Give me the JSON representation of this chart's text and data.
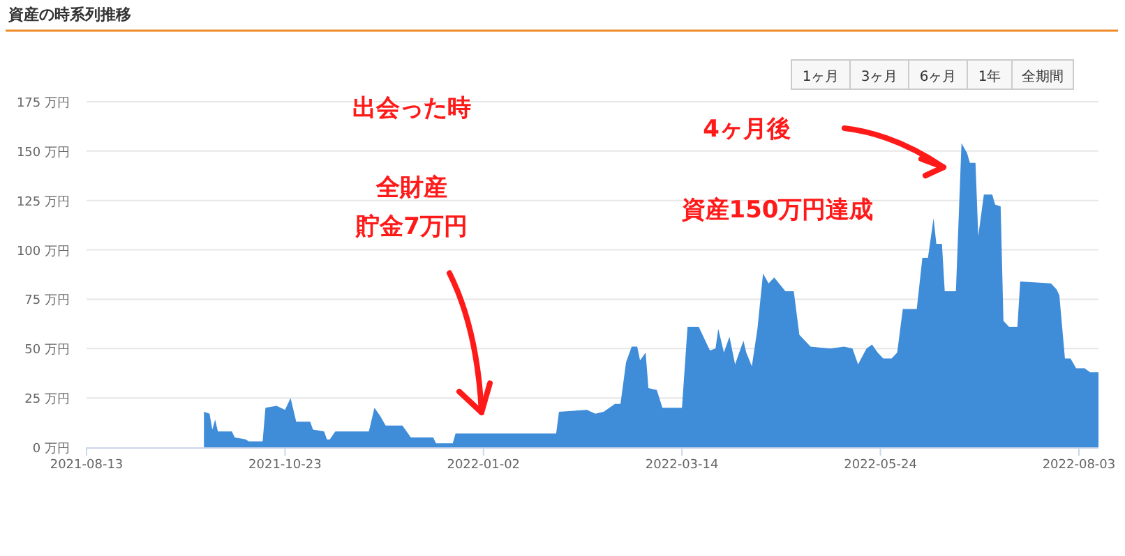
{
  "chart_data": {
    "type": "area",
    "title": "資産の時系列推移",
    "x": [
      "2021-09-24",
      "2021-09-26",
      "2021-09-27",
      "2021-09-28",
      "2021-09-29",
      "2021-10-04",
      "2021-10-05",
      "2021-10-09",
      "2021-10-10",
      "2021-10-15",
      "2021-10-16",
      "2021-10-20",
      "2021-10-23",
      "2021-10-25",
      "2021-10-26",
      "2021-10-27",
      "2021-11-01",
      "2021-11-02",
      "2021-11-06",
      "2021-11-07",
      "2021-11-08",
      "2021-11-10",
      "2021-11-22",
      "2021-11-24",
      "2021-11-26",
      "2021-11-28",
      "2021-12-04",
      "2021-12-07",
      "2021-12-15",
      "2021-12-16",
      "2021-12-22",
      "2021-12-23",
      "2022-01-28",
      "2022-01-29",
      "2022-02-08",
      "2022-02-11",
      "2022-02-14",
      "2022-02-18",
      "2022-02-20",
      "2022-02-22",
      "2022-02-24",
      "2022-02-26",
      "2022-02-27",
      "2022-03-01",
      "2022-03-02",
      "2022-03-05",
      "2022-03-07",
      "2022-03-14",
      "2022-03-16",
      "2022-03-20",
      "2022-03-22",
      "2022-03-24",
      "2022-03-26",
      "2022-03-27",
      "2022-03-29",
      "2022-03-31",
      "2022-04-02",
      "2022-04-05",
      "2022-04-06",
      "2022-04-08",
      "2022-04-10",
      "2022-04-12",
      "2022-04-14",
      "2022-04-16",
      "2022-04-20",
      "2022-04-23",
      "2022-04-25",
      "2022-04-29",
      "2022-05-06",
      "2022-05-11",
      "2022-05-14",
      "2022-05-16",
      "2022-05-19",
      "2022-05-21",
      "2022-05-23",
      "2022-05-25",
      "2022-05-28",
      "2022-05-30",
      "2022-06-01",
      "2022-06-06",
      "2022-06-08",
      "2022-06-10",
      "2022-06-12",
      "2022-06-13",
      "2022-06-15",
      "2022-06-16",
      "2022-06-20",
      "2022-06-22",
      "2022-06-24",
      "2022-06-25",
      "2022-06-27",
      "2022-06-28",
      "2022-06-30",
      "2022-07-03",
      "2022-07-04",
      "2022-07-06",
      "2022-07-07",
      "2022-07-09",
      "2022-07-12",
      "2022-07-13",
      "2022-07-24",
      "2022-07-26",
      "2022-07-27",
      "2022-07-29",
      "2022-07-31",
      "2022-08-02",
      "2022-08-05",
      "2022-08-07",
      "2022-08-10"
    ],
    "series": [
      {
        "color": "#3f8cd9",
        "values": [
          18,
          17,
          9,
          14,
          8,
          8,
          5,
          4,
          3,
          3,
          20,
          21,
          19,
          25,
          19,
          13,
          13,
          9,
          8,
          4,
          4,
          8,
          8,
          20,
          16,
          11,
          11,
          5,
          5,
          2,
          2,
          7,
          7,
          18,
          19,
          17,
          18,
          22,
          22,
          43,
          51,
          51,
          44,
          48,
          30,
          29,
          20,
          20,
          61,
          61,
          55,
          49,
          50,
          60,
          48,
          56,
          42,
          54,
          48,
          41,
          60,
          88,
          83,
          86,
          79,
          79,
          57,
          51,
          50,
          51,
          50,
          42,
          50,
          52,
          48,
          45,
          45,
          48,
          70,
          70,
          96,
          96,
          116,
          103,
          103,
          79,
          79,
          154,
          149,
          144,
          144,
          107,
          128,
          128,
          123,
          122,
          64,
          61,
          61,
          84,
          83,
          80,
          77,
          45,
          45,
          40,
          40,
          38,
          38
        ]
      }
    ],
    "xlim": [
      "2021-08-13",
      "2022-08-10"
    ],
    "xticks": [
      "2021-08-13",
      "2021-10-23",
      "2022-01-02",
      "2022-03-14",
      "2022-05-24",
      "2022-08-03"
    ],
    "ylim": [
      0,
      175
    ],
    "yticks": [
      {
        "value": 0,
        "label": "0 万円"
      },
      {
        "value": 25,
        "label": "25 万円"
      },
      {
        "value": 50,
        "label": "50 万円"
      },
      {
        "value": 75,
        "label": "75 万円"
      },
      {
        "value": 100,
        "label": "100 万円"
      },
      {
        "value": 125,
        "label": "125 万円"
      },
      {
        "value": 150,
        "label": "150 万円"
      },
      {
        "value": 175,
        "label": "175 万円"
      }
    ],
    "grid": "y",
    "annotations": [
      "出会った時",
      "全財産",
      "貯金7万円",
      "4ヶ月後",
      "資産150万円達成",
      "1ヶ月",
      "3ヶ月",
      "6ヶ月",
      "1年",
      "全期間"
    ]
  }
}
